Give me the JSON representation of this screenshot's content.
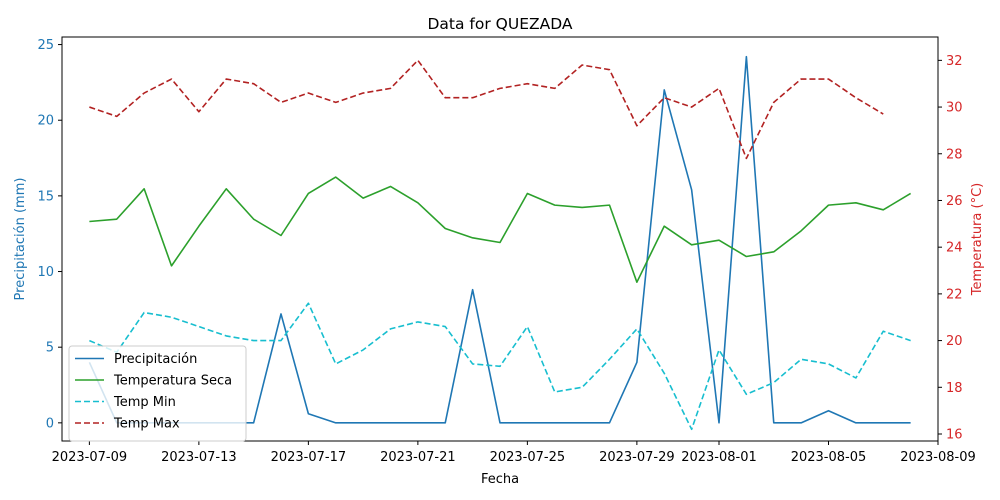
{
  "chart_data": {
    "type": "line",
    "title": "Data for QUEZADA",
    "xlabel": "Fecha",
    "ylabel_left": "Precipitación (mm)",
    "ylabel_right": "Temperatura (°C)",
    "x_dates": [
      "2023-07-09",
      "2023-07-10",
      "2023-07-11",
      "2023-07-12",
      "2023-07-13",
      "2023-07-14",
      "2023-07-15",
      "2023-07-16",
      "2023-07-17",
      "2023-07-18",
      "2023-07-19",
      "2023-07-20",
      "2023-07-21",
      "2023-07-22",
      "2023-07-23",
      "2023-07-24",
      "2023-07-25",
      "2023-07-26",
      "2023-07-27",
      "2023-07-28",
      "2023-07-29",
      "2023-07-30",
      "2023-07-31",
      "2023-08-01",
      "2023-08-02",
      "2023-08-03",
      "2023-08-04",
      "2023-08-05",
      "2023-08-06",
      "2023-08-07",
      "2023-08-08"
    ],
    "x_ticks": [
      "2023-07-09",
      "2023-07-13",
      "2023-07-17",
      "2023-07-21",
      "2023-07-25",
      "2023-07-29",
      "2023-08-01",
      "2023-08-05",
      "2023-08-09"
    ],
    "x_range": [
      "2023-07-08",
      "2023-08-09"
    ],
    "left_axis": {
      "ylim": [
        -1.2,
        25.5
      ],
      "ticks": [
        0,
        5,
        10,
        15,
        20,
        25
      ],
      "color": "#1f77b4"
    },
    "right_axis": {
      "ylim": [
        15.7,
        33.0
      ],
      "ticks": [
        16,
        18,
        20,
        22,
        24,
        26,
        28,
        30,
        32
      ],
      "color": "#d62728"
    },
    "series": [
      {
        "name": "Precipitación",
        "axis": "left",
        "color": "#1f77b4",
        "dash": "solid",
        "values": [
          4.0,
          0.0,
          0.0,
          0.0,
          0.0,
          0.0,
          0.0,
          7.2,
          0.6,
          0.0,
          0.0,
          0.0,
          0.0,
          0.0,
          8.8,
          0.0,
          0.0,
          0.0,
          0.0,
          0.0,
          4.0,
          22.0,
          15.4,
          0.0,
          24.2,
          0.0,
          0.0,
          0.8,
          0.0,
          0.0,
          0.0
        ]
      },
      {
        "name": "Temperatura Seca",
        "axis": "right",
        "color": "#2ca02c",
        "dash": "solid",
        "values": [
          25.1,
          25.2,
          26.5,
          23.2,
          24.9,
          26.5,
          25.2,
          24.5,
          26.3,
          27.0,
          26.1,
          26.6,
          25.9,
          24.8,
          24.4,
          24.2,
          26.3,
          25.8,
          25.7,
          25.8,
          22.5,
          24.9,
          24.1,
          24.3,
          23.6,
          23.8,
          24.7,
          25.8,
          25.9,
          25.6,
          26.3
        ]
      },
      {
        "name": "Temp Min",
        "axis": "right",
        "color": "#17becf",
        "dash": "dashed",
        "values": [
          20.0,
          19.5,
          21.2,
          21.0,
          20.6,
          20.2,
          20.0,
          20.0,
          21.6,
          19.0,
          19.6,
          20.5,
          20.8,
          20.6,
          19.0,
          18.9,
          20.6,
          17.8,
          18.0,
          19.2,
          20.5,
          18.6,
          16.2,
          19.6,
          17.7,
          18.2,
          19.2,
          19.0,
          18.4,
          20.4,
          20.0
        ]
      },
      {
        "name": "Temp Max",
        "axis": "right",
        "color": "#b22222",
        "dash": "dashed",
        "values": [
          30.0,
          29.6,
          30.6,
          31.2,
          29.8,
          31.2,
          31.0,
          30.2,
          30.6,
          30.2,
          30.6,
          30.8,
          32.0,
          30.4,
          30.4,
          30.8,
          31.0,
          30.8,
          31.8,
          31.6,
          29.2,
          30.4,
          30.0,
          30.8,
          27.8,
          30.2,
          31.2,
          31.2,
          30.4,
          29.7,
          null
        ]
      }
    ],
    "legend_position": "lower-left",
    "grid": false
  }
}
